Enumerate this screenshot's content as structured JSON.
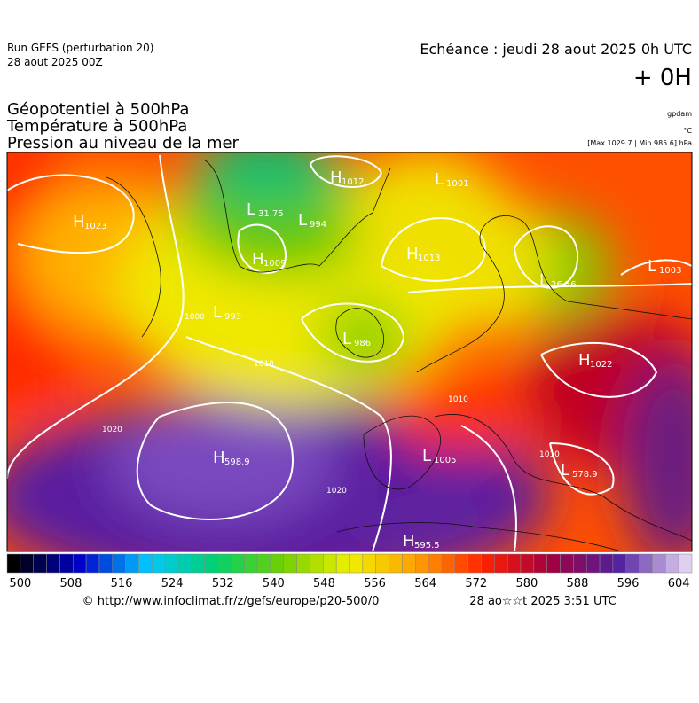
{
  "header": {
    "run": "Run GEFS (perturbation 20)",
    "date": "28 aout 2025 00Z",
    "echeance": "Echéance : jeudi 28 aout 2025 0h UTC",
    "lead": "+ 0H"
  },
  "titles": [
    "Géopotentiel à 500hPa",
    "Température à 500hPa",
    "Pression au niveau de la mer"
  ],
  "units": [
    "gpdam",
    "°C",
    "[Max 1029.7 | Min 985.6] hPa"
  ],
  "map_labels": [
    {
      "symbol": "H",
      "value": "1023"
    },
    {
      "symbol": "H",
      "value": "1012"
    },
    {
      "symbol": "L",
      "value": "31.75"
    },
    {
      "symbol": "L",
      "value": "994"
    },
    {
      "symbol": "H",
      "value": "1009"
    },
    {
      "symbol": "L",
      "value": "993"
    },
    {
      "symbol": "L",
      "value": "1001"
    },
    {
      "symbol": "H",
      "value": "1013"
    },
    {
      "symbol": "L",
      "value": "1003"
    },
    {
      "symbol": "L",
      "value": "26.56"
    },
    {
      "symbol": "L",
      "value": "986"
    },
    {
      "symbol": "H",
      "value": "1022"
    },
    {
      "symbol": "H",
      "value": "598.9"
    },
    {
      "symbol": "L",
      "value": "1005"
    },
    {
      "symbol": "L",
      "value": "578.9"
    },
    {
      "symbol": "H",
      "value": "595.5"
    }
  ],
  "contour_labels": [
    "1020",
    "1010",
    "1000",
    "1020",
    "1010",
    "1010"
  ],
  "colorbar": {
    "ticks": [
      500,
      508,
      516,
      524,
      532,
      540,
      548,
      556,
      564,
      572,
      580,
      588,
      596,
      604
    ],
    "stops": [
      "#000000",
      "#0000cc",
      "#00c8ff",
      "#00d070",
      "#70d000",
      "#f0f000",
      "#ffa000",
      "#ff2000",
      "#a00040",
      "#5020a0",
      "#e0d0f0"
    ]
  },
  "footer": {
    "url": "© http://www.infoclimat.fr/z/gefs/europe/p20-500/0",
    "time": "28 ao☆☆t 2025  3:51 UTC"
  }
}
